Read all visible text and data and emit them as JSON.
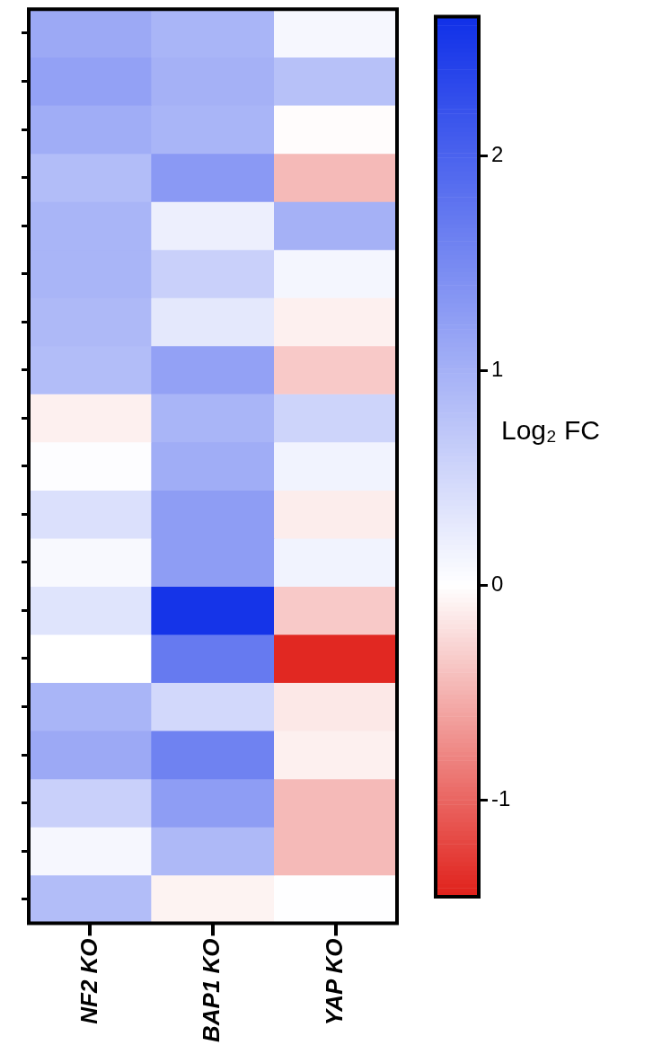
{
  "chart_data": {
    "type": "heatmap",
    "categories": [
      "NF2 KO",
      "BAP1 KO",
      "YAP KO"
    ],
    "y_categories": [
      null,
      null,
      null,
      null,
      null,
      null,
      null,
      null,
      null,
      null,
      null,
      null,
      null,
      null,
      null,
      null,
      null,
      null,
      null
    ],
    "cells": [
      [
        1.1,
        0.95,
        0.1
      ],
      [
        1.2,
        1.0,
        0.8
      ],
      [
        1.05,
        0.95,
        -0.02
      ],
      [
        0.85,
        1.3,
        -0.45
      ],
      [
        0.95,
        0.2,
        1.0
      ],
      [
        0.95,
        0.6,
        0.12
      ],
      [
        0.9,
        0.3,
        -0.1
      ],
      [
        0.85,
        1.2,
        -0.35
      ],
      [
        -0.1,
        0.95,
        0.55
      ],
      [
        0.02,
        1.05,
        0.15
      ],
      [
        0.4,
        1.25,
        -0.12
      ],
      [
        0.08,
        1.25,
        0.15
      ],
      [
        0.35,
        2.6,
        -0.35
      ],
      [
        0.0,
        1.7,
        -1.4
      ],
      [
        0.95,
        0.5,
        -0.15
      ],
      [
        1.1,
        1.6,
        -0.1
      ],
      [
        0.6,
        1.25,
        -0.45
      ],
      [
        0.1,
        0.9,
        -0.45
      ],
      [
        0.85,
        -0.08,
        0.01
      ]
    ],
    "clim": [
      -1.45,
      2.65
    ],
    "cticks": [
      -1,
      0,
      1,
      2
    ],
    "clabel": "Log₂ FC"
  }
}
